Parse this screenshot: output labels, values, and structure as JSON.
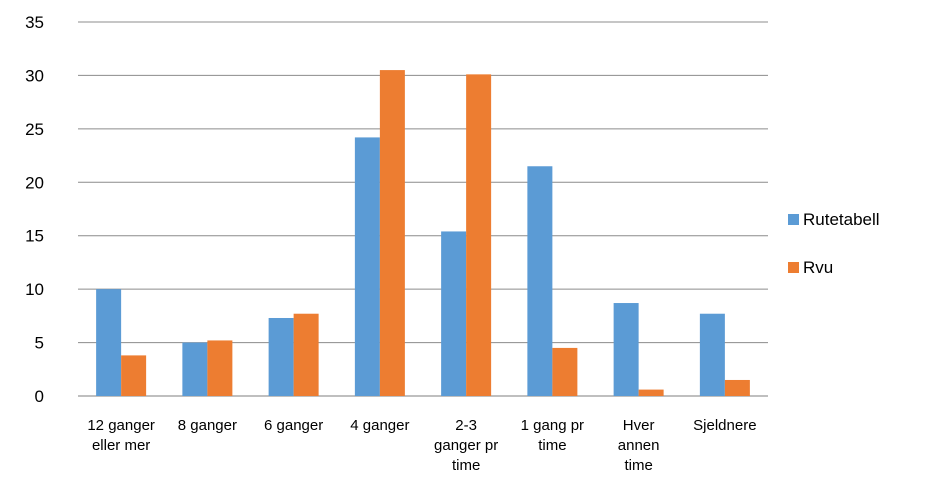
{
  "chart_data": {
    "type": "bar",
    "title": "",
    "xlabel": "",
    "ylabel": "",
    "ylim": [
      0,
      35
    ],
    "yticks": [
      0,
      5,
      10,
      15,
      20,
      25,
      30,
      35
    ],
    "grid": true,
    "legend_position": "right",
    "categories": [
      [
        "12 ganger",
        "eller mer"
      ],
      [
        "8 ganger"
      ],
      [
        "6 ganger"
      ],
      [
        "4 ganger"
      ],
      [
        "2-3",
        "ganger pr",
        "time"
      ],
      [
        "1 gang pr",
        "time"
      ],
      [
        "Hver",
        "annen",
        "time"
      ],
      [
        "Sjeldnere"
      ]
    ],
    "series": [
      {
        "name": "Rutetabell",
        "color": "#5B9BD5",
        "values": [
          10,
          5,
          7.3,
          24.2,
          15.4,
          21.5,
          8.7,
          7.7
        ]
      },
      {
        "name": "Rvu",
        "color": "#ED7D31",
        "values": [
          3.8,
          5.2,
          7.7,
          30.5,
          30.1,
          4.5,
          0.6,
          1.5
        ]
      }
    ]
  }
}
